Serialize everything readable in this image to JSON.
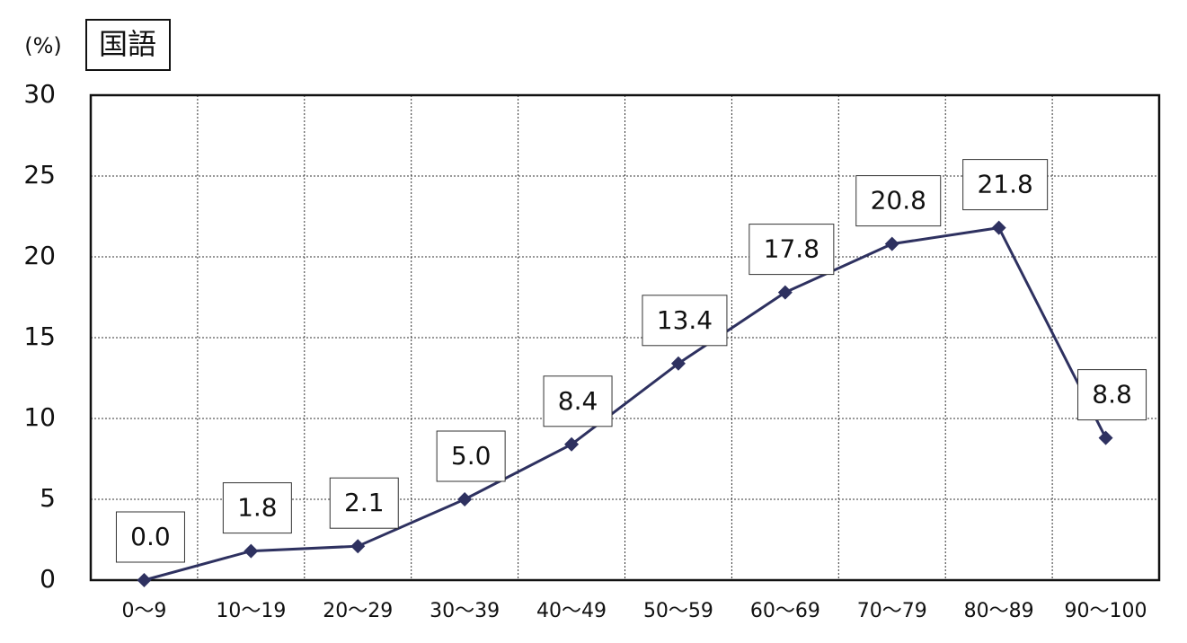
{
  "chart_data": {
    "type": "line",
    "title": "国語",
    "y_label": "(%)",
    "categories": [
      "0〜9",
      "10〜19",
      "20〜29",
      "30〜39",
      "40〜49",
      "50〜59",
      "60〜69",
      "70〜79",
      "80〜89",
      "90〜100"
    ],
    "series": [
      {
        "color": "#2e3160",
        "values": [
          0.0,
          1.8,
          2.1,
          5.0,
          8.4,
          13.4,
          17.8,
          20.8,
          21.8,
          8.8
        ],
        "value_labels": [
          "0.0",
          "1.8",
          "2.1",
          "5.0",
          "8.4",
          "13.4",
          "17.8",
          "20.8",
          "21.8",
          "8.8"
        ]
      }
    ],
    "ylim": [
      0,
      30
    ],
    "yticks": [
      0,
      5,
      10,
      15,
      20,
      25,
      30
    ],
    "grid": true
  }
}
